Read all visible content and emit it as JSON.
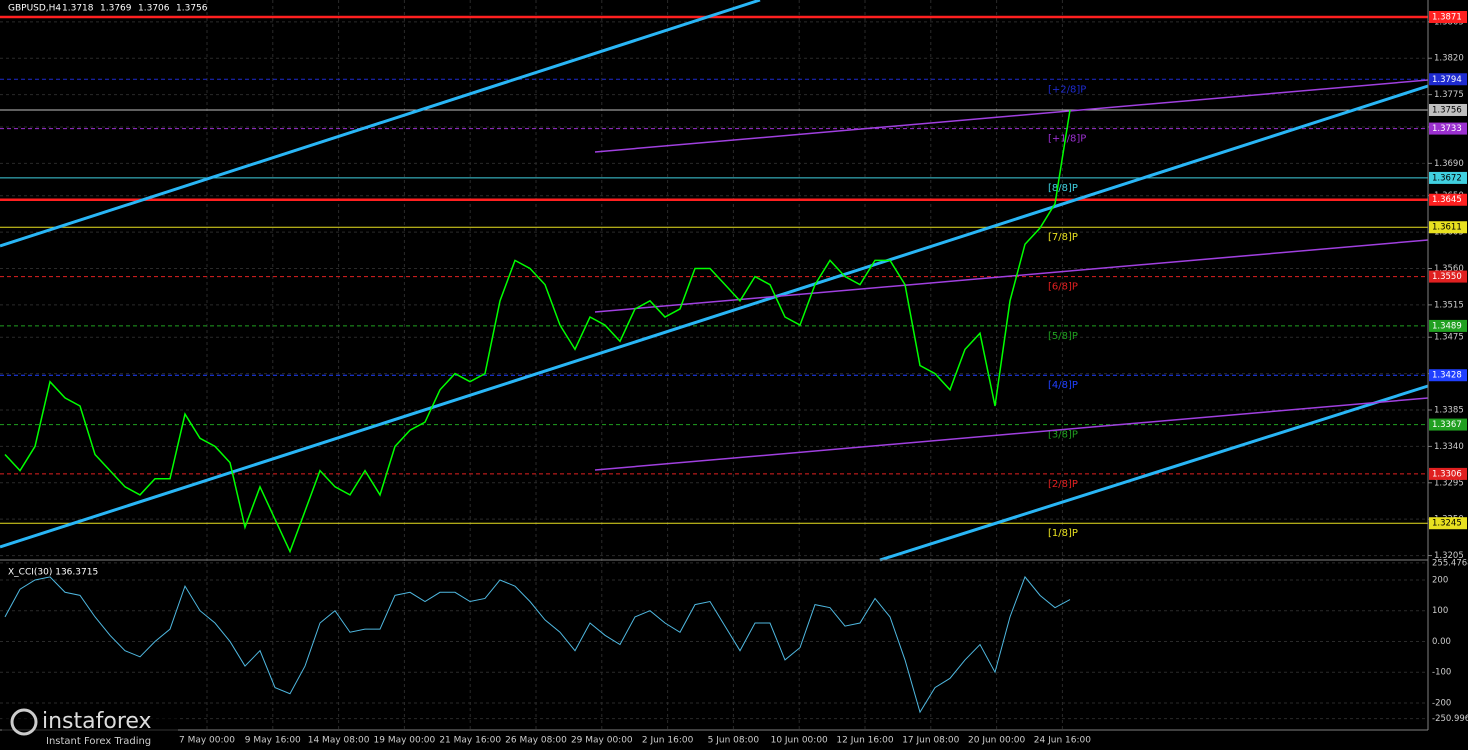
{
  "chart_data": {
    "type": "line",
    "symbol": "GBPUSD,H4",
    "ohlc": [
      1.3718,
      1.3769,
      1.3706,
      1.3756
    ],
    "series": [
      {
        "name": "GBPUSD",
        "color": "#00ff00",
        "values": [
          1.333,
          1.331,
          1.334,
          1.342,
          1.34,
          1.339,
          1.333,
          1.331,
          1.329,
          1.328,
          1.33,
          1.33,
          1.338,
          1.335,
          1.334,
          1.332,
          1.324,
          1.329,
          1.325,
          1.321,
          1.326,
          1.331,
          1.329,
          1.328,
          1.331,
          1.328,
          1.334,
          1.336,
          1.337,
          1.341,
          1.343,
          1.342,
          1.343,
          1.352,
          1.357,
          1.356,
          1.354,
          1.349,
          1.346,
          1.35,
          1.349,
          1.347,
          1.351,
          1.352,
          1.35,
          1.351,
          1.356,
          1.356,
          1.354,
          1.352,
          1.355,
          1.354,
          1.35,
          1.349,
          1.354,
          1.357,
          1.355,
          1.354,
          1.357,
          1.357,
          1.354,
          1.344,
          1.343,
          1.341,
          1.346,
          1.348,
          1.339,
          1.352,
          1.359,
          1.361,
          1.364,
          1.3756
        ]
      }
    ],
    "ylim": [
      1.3202,
      1.3892
    ],
    "yticks": [
      1.3205,
      {
        "value": 1.325,
        "label": "1.3250"
      },
      1.3295,
      {
        "value": 1.334,
        "label": "1.3340"
      },
      1.3385,
      {
        "value": 1.343,
        "label": "1.3430"
      },
      1.3475,
      1.3515,
      {
        "value": 1.356,
        "label": "1.3560"
      },
      1.3605,
      {
        "value": 1.365,
        "label": "1.3650"
      },
      {
        "value": 1.369,
        "label": "1.3690"
      },
      1.3735,
      1.3775,
      {
        "value": 1.382,
        "label": "1.3820"
      },
      1.3865
    ],
    "levels": [
      {
        "value": 1.3871,
        "color": "#ff2020"
      },
      {
        "value": 1.3794,
        "color": "#1e2bd0",
        "murray": "[+2/8]P"
      },
      {
        "value": 1.3756,
        "color": "#c0c0c0"
      },
      {
        "value": 1.3733,
        "color": "#9b30d0",
        "murray": "[+1/8]P"
      },
      {
        "value": 1.3672,
        "color": "#40d0e0",
        "murray": "[8/8]P"
      },
      {
        "value": 1.3645,
        "color": "#ff2020"
      },
      {
        "value": 1.3611,
        "color": "#e8e020",
        "murray": "[7/8]P"
      },
      {
        "value": 1.355,
        "label": "1.3550",
        "color": "#e02020",
        "murray": "[6/8]P"
      },
      {
        "value": 1.3489,
        "color": "#20a020",
        "murray": "[5/8]P"
      },
      {
        "value": 1.3428,
        "color": "#2040ff",
        "murray": "[4/8]P"
      },
      {
        "value": 1.3367,
        "color": "#20a020",
        "murray": "[3/8]P"
      },
      {
        "value": 1.3306,
        "color": "#e02020",
        "murray": "[2/8]P"
      },
      {
        "value": 1.3245,
        "color": "#e8e020",
        "murray": "[1/8]P"
      }
    ],
    "x_labels": [
      "7 May 00:00",
      "9 May 16:00",
      "14 May 08:00",
      "19 May 00:00",
      "21 May 16:00",
      "26 May 08:00",
      "29 May 00:00",
      "2 Jun 16:00",
      "5 Jun 08:00",
      "10 Jun 00:00",
      "12 Jun 16:00",
      "17 Jun 08:00",
      "20 Jun 00:00",
      "24 Jun 16:00"
    ],
    "indicator": {
      "title": "X_CCI(30) 136.3715",
      "color": "#4fb8e0",
      "values": [
        80,
        170,
        200,
        210,
        160,
        150,
        80,
        20,
        -30,
        -50,
        0,
        40,
        180,
        100,
        60,
        0,
        -80,
        -30,
        -150,
        -170,
        -80,
        60,
        100,
        30,
        40,
        40,
        150,
        160,
        130,
        160,
        160,
        130,
        140,
        200,
        180,
        130,
        70,
        30,
        -30,
        60,
        20,
        -10,
        80,
        100,
        60,
        30,
        120,
        130,
        50,
        -30,
        60,
        60,
        -60,
        -20,
        120,
        110,
        50,
        60,
        140,
        80,
        -60,
        -230,
        -150,
        -120,
        -60,
        -10,
        -100,
        80,
        210,
        150,
        110,
        136.3715
      ],
      "ylim": [
        -288,
        258.5
      ],
      "yticks": [
        255.4768,
        200,
        100,
        {
          "value": 0,
          "label": "0.00"
        },
        -100,
        -200,
        -250.996
      ]
    },
    "watermark": {
      "brand": "instaforex",
      "tagline": "Instant Forex Trading"
    }
  }
}
